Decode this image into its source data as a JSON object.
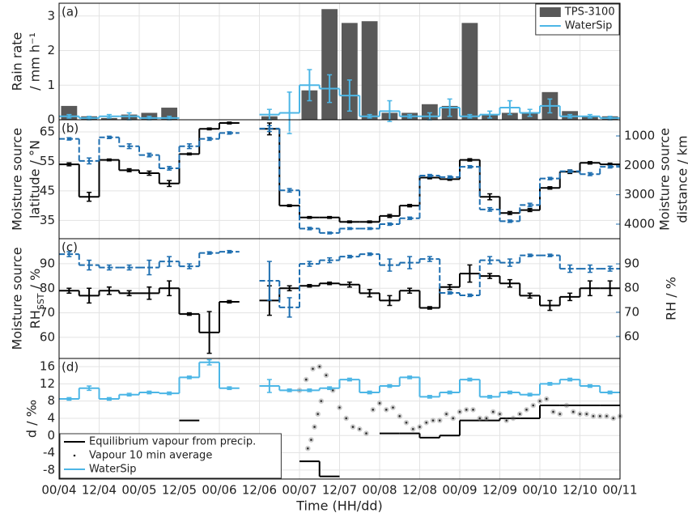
{
  "chart_data": [
    {
      "type": "bar",
      "label": "(a)",
      "ylabel": [
        "Rain rate",
        "/ mm h⁻¹"
      ],
      "x": [
        3,
        9,
        15,
        21,
        27,
        33,
        39,
        45,
        51,
        57,
        63,
        69,
        75,
        81,
        87,
        93,
        99,
        105,
        111,
        117,
        123,
        129,
        135,
        141,
        147,
        153,
        159,
        165
      ],
      "ylim": [
        0,
        3.37
      ],
      "yticks": [
        0,
        1,
        2,
        3
      ],
      "legend": "upper right",
      "series": [
        {
          "name": "TPS-3100",
          "kind": "bar",
          "color": "#595959",
          "values": [
            0.4,
            0.1,
            0.05,
            0.15,
            0.2,
            0.35,
            0,
            0,
            0,
            0,
            0.1,
            0,
            0.85,
            3.2,
            2.8,
            2.85,
            0.2,
            0.2,
            0.45,
            0.4,
            2.8,
            0.15,
            0.2,
            0.2,
            0.8,
            0.25,
            0.1,
            0.1
          ]
        },
        {
          "name": "WaterSip",
          "kind": "step",
          "color": "#4cb6e6",
          "values": [
            0.1,
            0.05,
            0.1,
            0.1,
            0.05,
            0.05,
            null,
            null,
            null,
            null,
            0.15,
            0.2,
            1.0,
            0.9,
            0.7,
            0.1,
            0.25,
            0.1,
            0.1,
            0.35,
            0.1,
            0.15,
            0.35,
            0.2,
            0.4,
            0.1,
            0.1,
            0.05
          ],
          "errors": [
            0.05,
            0.05,
            0.05,
            0.1,
            0.05,
            0.05,
            null,
            null,
            null,
            null,
            0.15,
            0.6,
            0.45,
            0.4,
            0.45,
            0.05,
            0.3,
            0.05,
            0.1,
            0.25,
            0.05,
            0.1,
            0.2,
            0.1,
            0.2,
            0.05,
            0.05,
            0.05
          ]
        }
      ]
    },
    {
      "type": "line",
      "label": "(b)",
      "ylabel": [
        "Moisture source",
        "latitude / °N"
      ],
      "y2label": [
        "Moisture source",
        "distance / km"
      ],
      "x": [
        3,
        9,
        15,
        21,
        27,
        33,
        39,
        45,
        51,
        57,
        63,
        69,
        75,
        81,
        87,
        93,
        99,
        105,
        111,
        117,
        123,
        129,
        135,
        141,
        147,
        153,
        159,
        165
      ],
      "ylim": [
        28.8,
        69.1
      ],
      "yticks": [
        35,
        45,
        55,
        65
      ],
      "y2lim": [
        4495,
        450
      ],
      "y2ticks": [
        1000,
        2000,
        3000,
        4000
      ],
      "y2color": "#1f6fb0",
      "series": [
        {
          "kind": "step",
          "color": "#000000",
          "values": [
            54,
            43,
            55.5,
            52,
            51,
            47.5,
            57.5,
            66,
            68,
            null,
            66,
            40,
            36,
            36,
            34.5,
            34.5,
            36.5,
            40,
            49.5,
            49,
            55.5,
            43,
            37.5,
            38.5,
            46,
            51.5,
            54.5,
            54
          ],
          "errors": [
            0.5,
            1.5,
            0.3,
            0.5,
            0.7,
            1,
            0.3,
            0.3,
            0.3,
            null,
            2,
            0.3,
            0.3,
            0.3,
            0.3,
            0.3,
            0.5,
            0.4,
            0.4,
            0.4,
            0.4,
            1,
            0.5,
            0.5,
            0.4,
            0.6,
            0.4,
            0.4
          ]
        },
        {
          "kind": "step",
          "color": "#1f6fb0",
          "dash": true,
          "axis": "y2",
          "values": [
            1100,
            1850,
            1050,
            1350,
            1650,
            2100,
            1350,
            1100,
            900,
            null,
            750,
            2850,
            4150,
            4300,
            4150,
            4150,
            4000,
            3800,
            2350,
            2400,
            2050,
            3500,
            3900,
            3350,
            2450,
            2200,
            2300,
            2050
          ],
          "errors": [
            40,
            100,
            40,
            80,
            60,
            60,
            80,
            50,
            40,
            null,
            100,
            60,
            40,
            30,
            30,
            30,
            40,
            40,
            40,
            40,
            40,
            60,
            40,
            60,
            40,
            40,
            50,
            40
          ]
        }
      ]
    },
    {
      "type": "line",
      "label": "(c)",
      "ylabel": [
        "Moisture source",
        [
          "RH",
          "SST",
          " / %"
        ]
      ],
      "y2label": [
        "RH / %"
      ],
      "x": [
        3,
        9,
        15,
        21,
        27,
        33,
        39,
        45,
        51,
        57,
        63,
        69,
        75,
        81,
        87,
        93,
        99,
        105,
        111,
        117,
        123,
        129,
        135,
        141,
        147,
        153,
        159,
        165
      ],
      "ylim": [
        51.4,
        100.2
      ],
      "yticks": [
        60,
        70,
        80,
        90
      ],
      "y2lim": [
        50.9,
        100.4
      ],
      "y2ticks": [
        60,
        70,
        80,
        90
      ],
      "y2color": "#1f6fb0",
      "series": [
        {
          "kind": "step",
          "color": "#000000",
          "values": [
            79,
            77,
            79,
            78,
            78,
            80,
            69.5,
            62,
            74.5,
            null,
            75,
            80,
            81,
            82,
            81.5,
            78,
            75,
            79,
            72,
            80.5,
            86,
            85,
            82,
            77,
            73,
            76.5,
            80,
            80
          ],
          "errors": [
            1,
            3,
            1.5,
            1,
            2.5,
            3,
            0.5,
            8.5,
            0.5,
            null,
            6,
            1,
            0.5,
            0.5,
            1,
            1.5,
            2,
            1,
            0.5,
            1,
            3.5,
            1,
            1.5,
            1,
            2,
            1.5,
            3,
            3
          ]
        },
        {
          "kind": "step",
          "color": "#1f6fb0",
          "dash": true,
          "axis": "y2",
          "values": [
            94,
            89.5,
            88.5,
            88.5,
            88.5,
            91,
            89,
            94.5,
            95,
            null,
            83,
            72,
            90,
            91.5,
            93,
            94,
            89.5,
            90.5,
            92,
            78,
            77,
            91.5,
            90.5,
            93.5,
            93.5,
            88,
            88,
            88
          ],
          "errors": [
            1,
            2,
            1,
            1,
            3,
            2,
            1,
            0.5,
            0.5,
            null,
            8,
            4,
            1,
            1,
            0.5,
            0.5,
            2.5,
            2.5,
            1,
            0.5,
            0.5,
            1.5,
            1.5,
            0.5,
            0.5,
            1.5,
            1.5,
            1
          ]
        }
      ]
    },
    {
      "type": "line",
      "label": "(d)",
      "ylabel": [
        "d / ‰"
      ],
      "xlabel": "Time (HH/dd)",
      "x": [
        3,
        9,
        15,
        21,
        27,
        33,
        39,
        45,
        51,
        57,
        63,
        69,
        75,
        81,
        87,
        93,
        99,
        105,
        111,
        117,
        123,
        129,
        135,
        141,
        147,
        153,
        159,
        165
      ],
      "xlim": [
        0,
        168
      ],
      "xticks": [
        {
          "value": 0,
          "label": "00/04"
        },
        {
          "value": 12,
          "label": "12/04"
        },
        {
          "value": 24,
          "label": "00/05"
        },
        {
          "value": 36,
          "label": "12/05"
        },
        {
          "value": 48,
          "label": "00/06"
        },
        {
          "value": 60,
          "label": "12/06"
        },
        {
          "value": 72,
          "label": "00/07"
        },
        {
          "value": 84,
          "label": "12/07"
        },
        {
          "value": 96,
          "label": "00/08"
        },
        {
          "value": 108,
          "label": "12/08"
        },
        {
          "value": 120,
          "label": "00/09"
        },
        {
          "value": 132,
          "label": "12/09"
        },
        {
          "value": 144,
          "label": "00/10"
        },
        {
          "value": 156,
          "label": "12/10"
        },
        {
          "value": 168,
          "label": "00/11"
        }
      ],
      "ylim": [
        -10.1,
        17.9
      ],
      "yticks": [
        -8,
        -4,
        0,
        4,
        8,
        12,
        16
      ],
      "legend": "lower left",
      "series": [
        {
          "name": "Equilibrium vapour from precip.",
          "kind": "step",
          "color": "#000000",
          "values": [
            null,
            null,
            null,
            null,
            null,
            null,
            3.5,
            null,
            null,
            null,
            null,
            null,
            -6,
            -9.5,
            null,
            null,
            0.5,
            0.5,
            -0.5,
            0,
            3.5,
            3.5,
            4,
            4,
            7,
            7,
            7,
            7
          ]
        },
        {
          "name": "Vapour 10 min average",
          "kind": "dots",
          "color": "#222222",
          "x": [
            72,
            74,
            76,
            78,
            80,
            82,
            84,
            86,
            88,
            90,
            92,
            94,
            96,
            98,
            100,
            102,
            104,
            106,
            108,
            110,
            112,
            114,
            116,
            118,
            120,
            122,
            124,
            126,
            128,
            130,
            132,
            134,
            136,
            138,
            140,
            142,
            144,
            146,
            148,
            150,
            152,
            154,
            156,
            158,
            160,
            162,
            164,
            166,
            168,
            74.5,
            75.5,
            76.5,
            77.5,
            78.5
          ],
          "values": [
            10.5,
            13,
            15.5,
            16,
            14,
            10.5,
            6.5,
            4,
            2,
            1.5,
            0.5,
            6,
            7.5,
            6,
            6.5,
            4.5,
            3,
            1.5,
            2,
            3,
            3.5,
            3.5,
            5,
            4,
            5.5,
            6,
            6,
            4,
            4,
            5.5,
            5,
            3.5,
            4,
            5,
            6,
            7,
            8,
            8.5,
            5.5,
            5,
            7,
            5.5,
            5,
            5,
            4.5,
            4.5,
            4.5,
            4,
            4.5,
            -3,
            -1,
            2,
            5,
            8
          ]
        },
        {
          "name": "WaterSip",
          "kind": "step",
          "color": "#4cb6e6",
          "values": [
            8.5,
            11,
            8.5,
            9.5,
            10,
            9.8,
            13.5,
            17,
            11,
            null,
            11.5,
            10.5,
            10.5,
            11,
            13,
            10,
            11.5,
            13.5,
            9,
            10,
            13,
            9,
            10,
            9.5,
            12,
            13,
            11.5,
            10
          ],
          "errors": [
            0.3,
            0.5,
            0.3,
            0.3,
            0.3,
            0.3,
            0.3,
            0.6,
            0.3,
            null,
            1.5,
            0.3,
            0.3,
            0.3,
            0.3,
            0.3,
            0.3,
            0.3,
            0.3,
            0.3,
            0.3,
            0.3,
            0.3,
            0.3,
            0.3,
            0.3,
            0.3,
            0.3
          ]
        }
      ]
    }
  ]
}
